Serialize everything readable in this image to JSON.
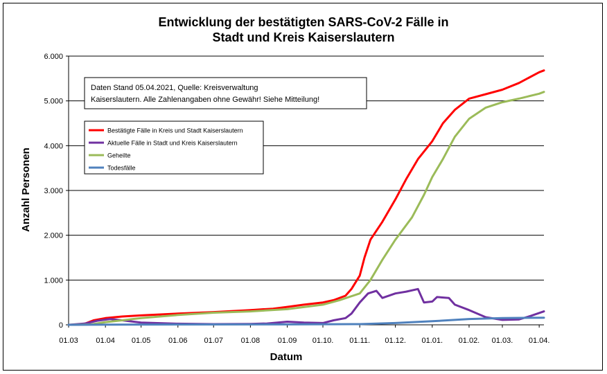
{
  "chart_data": {
    "type": "line",
    "title_line1": "Entwicklung der bestätigten SARS-CoV-2 Fälle in",
    "title_line2": "Stadt und Kreis Kaiserslautern",
    "xlabel": "Datum",
    "ylabel": "Anzahl Personen",
    "ylim": [
      0,
      6000
    ],
    "y_ticks": [
      0,
      1000,
      2000,
      3000,
      4000,
      5000,
      6000
    ],
    "y_tick_labels": [
      "0",
      "1.000",
      "2.000",
      "3.000",
      "4.000",
      "5.000",
      "6.000"
    ],
    "grid": "horizontal",
    "x_tick_labels": [
      "01.03",
      "01.04",
      "01.05",
      "01.06",
      "01.07",
      "01.08",
      "01.09",
      "01.10.",
      "01.11.",
      "01.12.",
      "01.01.",
      "01.02.",
      "01.03.",
      "01.04."
    ],
    "x_tick_dates": [
      "2020-03-01",
      "2020-04-01",
      "2020-05-01",
      "2020-06-01",
      "2020-07-01",
      "2020-08-01",
      "2020-09-01",
      "2020-10-01",
      "2020-11-01",
      "2020-12-01",
      "2021-01-01",
      "2021-02-01",
      "2021-03-01",
      "2021-04-01"
    ],
    "xlim": [
      "2020-03-01",
      "2021-04-05"
    ],
    "note_line1": "Daten Stand 05.04.2021, Quelle: Kreisverwaltung",
    "note_line2": "Kaiserslautern. Alle Zahlenangaben ohne Gewähr! Siehe Mitteilung!",
    "legend_position": "top-left",
    "series": [
      {
        "name": "Bestätigte Fälle in Kreis und Stadt Kaiserslautern",
        "color": "#ff0000",
        "points": [
          [
            "2020-03-01",
            0
          ],
          [
            "2020-03-10",
            5
          ],
          [
            "2020-03-15",
            30
          ],
          [
            "2020-03-22",
            100
          ],
          [
            "2020-04-01",
            150
          ],
          [
            "2020-04-15",
            185
          ],
          [
            "2020-05-01",
            210
          ],
          [
            "2020-06-01",
            250
          ],
          [
            "2020-07-01",
            285
          ],
          [
            "2020-08-01",
            330
          ],
          [
            "2020-08-20",
            360
          ],
          [
            "2020-09-01",
            400
          ],
          [
            "2020-09-15",
            450
          ],
          [
            "2020-10-01",
            500
          ],
          [
            "2020-10-10",
            550
          ],
          [
            "2020-10-20",
            650
          ],
          [
            "2020-10-25",
            800
          ],
          [
            "2020-11-01",
            1100
          ],
          [
            "2020-11-05",
            1500
          ],
          [
            "2020-11-10",
            1900
          ],
          [
            "2020-11-20",
            2300
          ],
          [
            "2020-12-01",
            2800
          ],
          [
            "2020-12-10",
            3250
          ],
          [
            "2020-12-20",
            3700
          ],
          [
            "2021-01-01",
            4100
          ],
          [
            "2021-01-10",
            4500
          ],
          [
            "2021-01-20",
            4800
          ],
          [
            "2021-02-01",
            5050
          ],
          [
            "2021-02-15",
            5150
          ],
          [
            "2021-03-01",
            5250
          ],
          [
            "2021-03-15",
            5400
          ],
          [
            "2021-04-01",
            5640
          ],
          [
            "2021-04-05",
            5680
          ]
        ]
      },
      {
        "name": "Aktuelle Fälle in Stadt und Kreis Kaiserslautern",
        "color": "#7030a0",
        "points": [
          [
            "2020-03-01",
            0
          ],
          [
            "2020-03-15",
            30
          ],
          [
            "2020-03-25",
            90
          ],
          [
            "2020-04-05",
            130
          ],
          [
            "2020-04-15",
            100
          ],
          [
            "2020-05-01",
            50
          ],
          [
            "2020-06-01",
            25
          ],
          [
            "2020-07-01",
            15
          ],
          [
            "2020-08-01",
            20
          ],
          [
            "2020-08-15",
            30
          ],
          [
            "2020-09-01",
            70
          ],
          [
            "2020-09-15",
            50
          ],
          [
            "2020-10-01",
            40
          ],
          [
            "2020-10-10",
            100
          ],
          [
            "2020-10-20",
            150
          ],
          [
            "2020-10-25",
            250
          ],
          [
            "2020-11-01",
            500
          ],
          [
            "2020-11-08",
            700
          ],
          [
            "2020-11-15",
            760
          ],
          [
            "2020-11-20",
            600
          ],
          [
            "2020-12-01",
            700
          ],
          [
            "2020-12-10",
            740
          ],
          [
            "2020-12-20",
            800
          ],
          [
            "2020-12-25",
            500
          ],
          [
            "2021-01-01",
            520
          ],
          [
            "2021-01-05",
            620
          ],
          [
            "2021-01-15",
            600
          ],
          [
            "2021-01-20",
            450
          ],
          [
            "2021-02-01",
            330
          ],
          [
            "2021-02-15",
            170
          ],
          [
            "2021-03-01",
            110
          ],
          [
            "2021-03-15",
            120
          ],
          [
            "2021-03-25",
            200
          ],
          [
            "2021-04-05",
            300
          ]
        ]
      },
      {
        "name": "Geheilte",
        "color": "#9bbb59",
        "points": [
          [
            "2020-03-01",
            0
          ],
          [
            "2020-03-20",
            10
          ],
          [
            "2020-04-01",
            60
          ],
          [
            "2020-04-15",
            100
          ],
          [
            "2020-05-01",
            150
          ],
          [
            "2020-06-01",
            220
          ],
          [
            "2020-07-01",
            270
          ],
          [
            "2020-08-01",
            300
          ],
          [
            "2020-09-01",
            350
          ],
          [
            "2020-10-01",
            450
          ],
          [
            "2020-10-15",
            550
          ],
          [
            "2020-11-01",
            700
          ],
          [
            "2020-11-10",
            1000
          ],
          [
            "2020-11-20",
            1450
          ],
          [
            "2020-12-01",
            1900
          ],
          [
            "2020-12-15",
            2400
          ],
          [
            "2020-12-25",
            2900
          ],
          [
            "2021-01-01",
            3300
          ],
          [
            "2021-01-10",
            3700
          ],
          [
            "2021-01-20",
            4200
          ],
          [
            "2021-02-01",
            4600
          ],
          [
            "2021-02-15",
            4850
          ],
          [
            "2021-03-01",
            4970
          ],
          [
            "2021-03-15",
            5050
          ],
          [
            "2021-04-01",
            5160
          ],
          [
            "2021-04-05",
            5200
          ]
        ]
      },
      {
        "name": "Todesfälle",
        "color": "#4f81bd",
        "points": [
          [
            "2020-03-01",
            0
          ],
          [
            "2020-04-01",
            5
          ],
          [
            "2020-06-01",
            8
          ],
          [
            "2020-09-01",
            10
          ],
          [
            "2020-11-01",
            15
          ],
          [
            "2020-12-01",
            40
          ],
          [
            "2021-01-01",
            80
          ],
          [
            "2021-02-01",
            130
          ],
          [
            "2021-03-01",
            150
          ],
          [
            "2021-04-05",
            160
          ]
        ]
      }
    ]
  }
}
